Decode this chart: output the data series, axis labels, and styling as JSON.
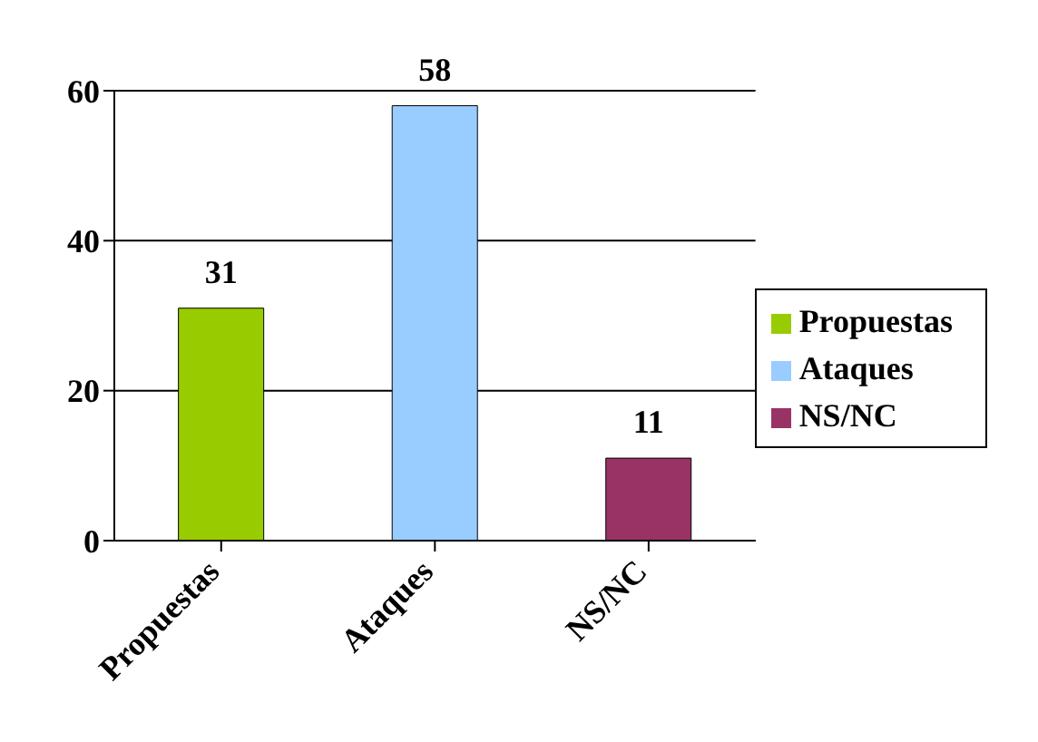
{
  "chart_data": {
    "type": "bar",
    "categories": [
      "Propuestas",
      "Ataques",
      "NS/NC"
    ],
    "series": [
      {
        "name": "Propuestas",
        "color": "#99cc00",
        "values": [
          31,
          null,
          null
        ]
      },
      {
        "name": "Ataques",
        "color": "#99ccff",
        "values": [
          null,
          58,
          null
        ]
      },
      {
        "name": "NS/NC",
        "color": "#993366",
        "values": [
          null,
          null,
          11
        ]
      }
    ],
    "stacked": true,
    "ylim": [
      0,
      60
    ],
    "yticks": [
      0,
      20,
      40,
      60
    ],
    "grid": "y",
    "data_labels": true,
    "legend": "right"
  }
}
